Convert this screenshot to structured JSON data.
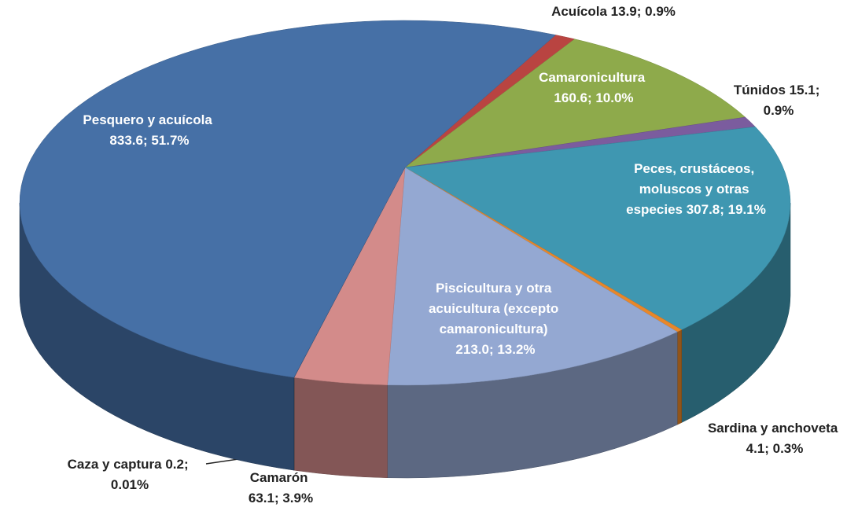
{
  "chart_data": {
    "type": "pie",
    "categories": [
      "Acuícola",
      "Camaronicultura",
      "Túnidos",
      "Peces, crustáceos, moluscos y otras especies",
      "Sardina y anchoveta",
      "Piscicultura y otra acuicultura (excepto camaronicultura)",
      "Camarón",
      "Caza y captura",
      "Pesquero y acuícola"
    ],
    "values": [
      13.9,
      160.6,
      15.1,
      307.8,
      4.1,
      213.0,
      63.1,
      0.2,
      833.6
    ],
    "value_labels": [
      "13.9; 0.9%",
      "160.6; 10.0%",
      "15.1; 0.9%",
      "307.8; 19.1%",
      "4.1; 0.3%",
      "213.0; 13.2%",
      "63.1; 3.9%",
      "0.2; 0.01%",
      "833.6; 51.7%"
    ],
    "colors": [
      "#b94441",
      "#8eaa4b",
      "#7b5c9e",
      "#3f97b1",
      "#e8872a",
      "#94a8d2",
      "#d38b8a",
      "#2b4e7a",
      "#4670a6"
    ]
  }
}
